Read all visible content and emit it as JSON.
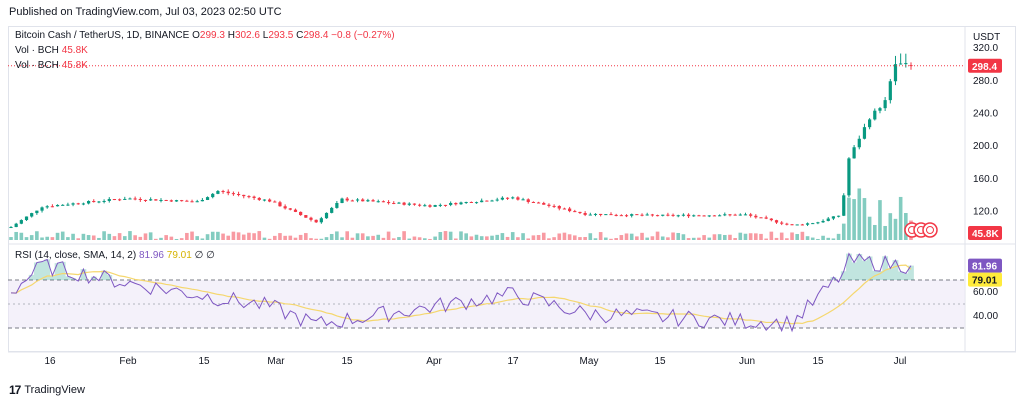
{
  "published": "Published on TradingView.com, Jul 03, 2023 02:50 UTC",
  "brand": "TradingView",
  "brand_logo": "17",
  "symbol_legend": {
    "name": "Bitcoin Cash / TetherUS, 1D, BINANCE",
    "o_label": "O",
    "o": "299.3",
    "h_label": "H",
    "h": "302.6",
    "l_label": "L",
    "l": "293.5",
    "c_label": "C",
    "c": "298.4",
    "change": "−0.8 (−0.27%)"
  },
  "volume_legend": [
    {
      "label": "Vol · BCH",
      "value": "45.8K"
    },
    {
      "label": "Vol · BCH",
      "value": "45.8K"
    }
  ],
  "rsi_legend": {
    "label": "RSI (14, close, SMA, 14, 2)",
    "rsi": "81.96",
    "sma": "79.01",
    "extra1": "∅",
    "extra2": "∅"
  },
  "price_axis": {
    "currency": "USDT",
    "ticks": [
      "320.0",
      "280.0",
      "240.0",
      "200.0",
      "160.0",
      "120.0"
    ],
    "tick_values": [
      320,
      280,
      240,
      200,
      160,
      120
    ],
    "last_price": "298.4",
    "last_volume": "45.8K"
  },
  "rsi_axis": {
    "ticks": [
      "60.00",
      "40.00"
    ],
    "tick_values": [
      60,
      40
    ],
    "rsi_value": "81.96",
    "sma_value": "79.01",
    "upper_band": 70,
    "lower_band": 30
  },
  "time_axis": [
    "16",
    "Feb",
    "15",
    "Mar",
    "15",
    "Apr",
    "17",
    "May",
    "15",
    "Jun",
    "15",
    "Jul"
  ],
  "colors": {
    "up": "#089981",
    "down": "#f23645",
    "rsi": "#7e57c2",
    "rsi_sma": "#f5d76e",
    "rsi_band_fill": "#ede7f6",
    "last_price": "#f23645",
    "rsi_tag": "#7e57c2",
    "sma_tag": "#ffeb3b"
  },
  "chart_data": {
    "type": "candlestick",
    "timeframe": "1D",
    "period": "Jan 2023 – Jul 2023",
    "price_close_anchors": [
      {
        "date": "2023-01-10",
        "close": 101
      },
      {
        "date": "2023-01-16",
        "close": 126
      },
      {
        "date": "2023-02-01",
        "close": 136
      },
      {
        "date": "2023-02-15",
        "close": 132
      },
      {
        "date": "2023-02-19",
        "close": 145
      },
      {
        "date": "2023-03-01",
        "close": 133
      },
      {
        "date": "2023-03-10",
        "close": 107
      },
      {
        "date": "2023-03-15",
        "close": 135
      },
      {
        "date": "2023-04-01",
        "close": 127
      },
      {
        "date": "2023-04-17",
        "close": 137
      },
      {
        "date": "2023-05-01",
        "close": 117
      },
      {
        "date": "2023-05-15",
        "close": 115
      },
      {
        "date": "2023-06-01",
        "close": 116
      },
      {
        "date": "2023-06-10",
        "close": 103
      },
      {
        "date": "2023-06-15",
        "close": 107
      },
      {
        "date": "2023-06-19",
        "close": 115
      },
      {
        "date": "2023-06-20",
        "close": 140
      },
      {
        "date": "2023-06-21",
        "close": 185
      },
      {
        "date": "2023-06-25",
        "close": 235
      },
      {
        "date": "2023-06-28",
        "close": 255
      },
      {
        "date": "2023-06-30",
        "close": 300
      },
      {
        "date": "2023-07-01",
        "close": 300
      },
      {
        "date": "2023-07-03",
        "close": 298.4
      }
    ],
    "last_candle": {
      "open": 299.3,
      "high": 302.6,
      "low": 293.5,
      "close": 298.4
    },
    "volume_last": "45.8K",
    "rsi_close_anchors": [
      {
        "date": "2023-01-10",
        "rsi": 60
      },
      {
        "date": "2023-01-16",
        "rsi": 82
      },
      {
        "date": "2023-02-01",
        "rsi": 68
      },
      {
        "date": "2023-03-01",
        "rsi": 48
      },
      {
        "date": "2023-03-10",
        "rsi": 33
      },
      {
        "date": "2023-04-17",
        "rsi": 58
      },
      {
        "date": "2023-05-01",
        "rsi": 42
      },
      {
        "date": "2023-06-10",
        "rsi": 34
      },
      {
        "date": "2023-06-20",
        "rsi": 76
      },
      {
        "date": "2023-06-21",
        "rsi": 86
      },
      {
        "date": "2023-07-03",
        "rsi": 81.96
      }
    ],
    "rsi_sma_last": 79.01,
    "y_price_range": [
      90,
      330
    ],
    "y_rsi_range": [
      20,
      95
    ]
  }
}
